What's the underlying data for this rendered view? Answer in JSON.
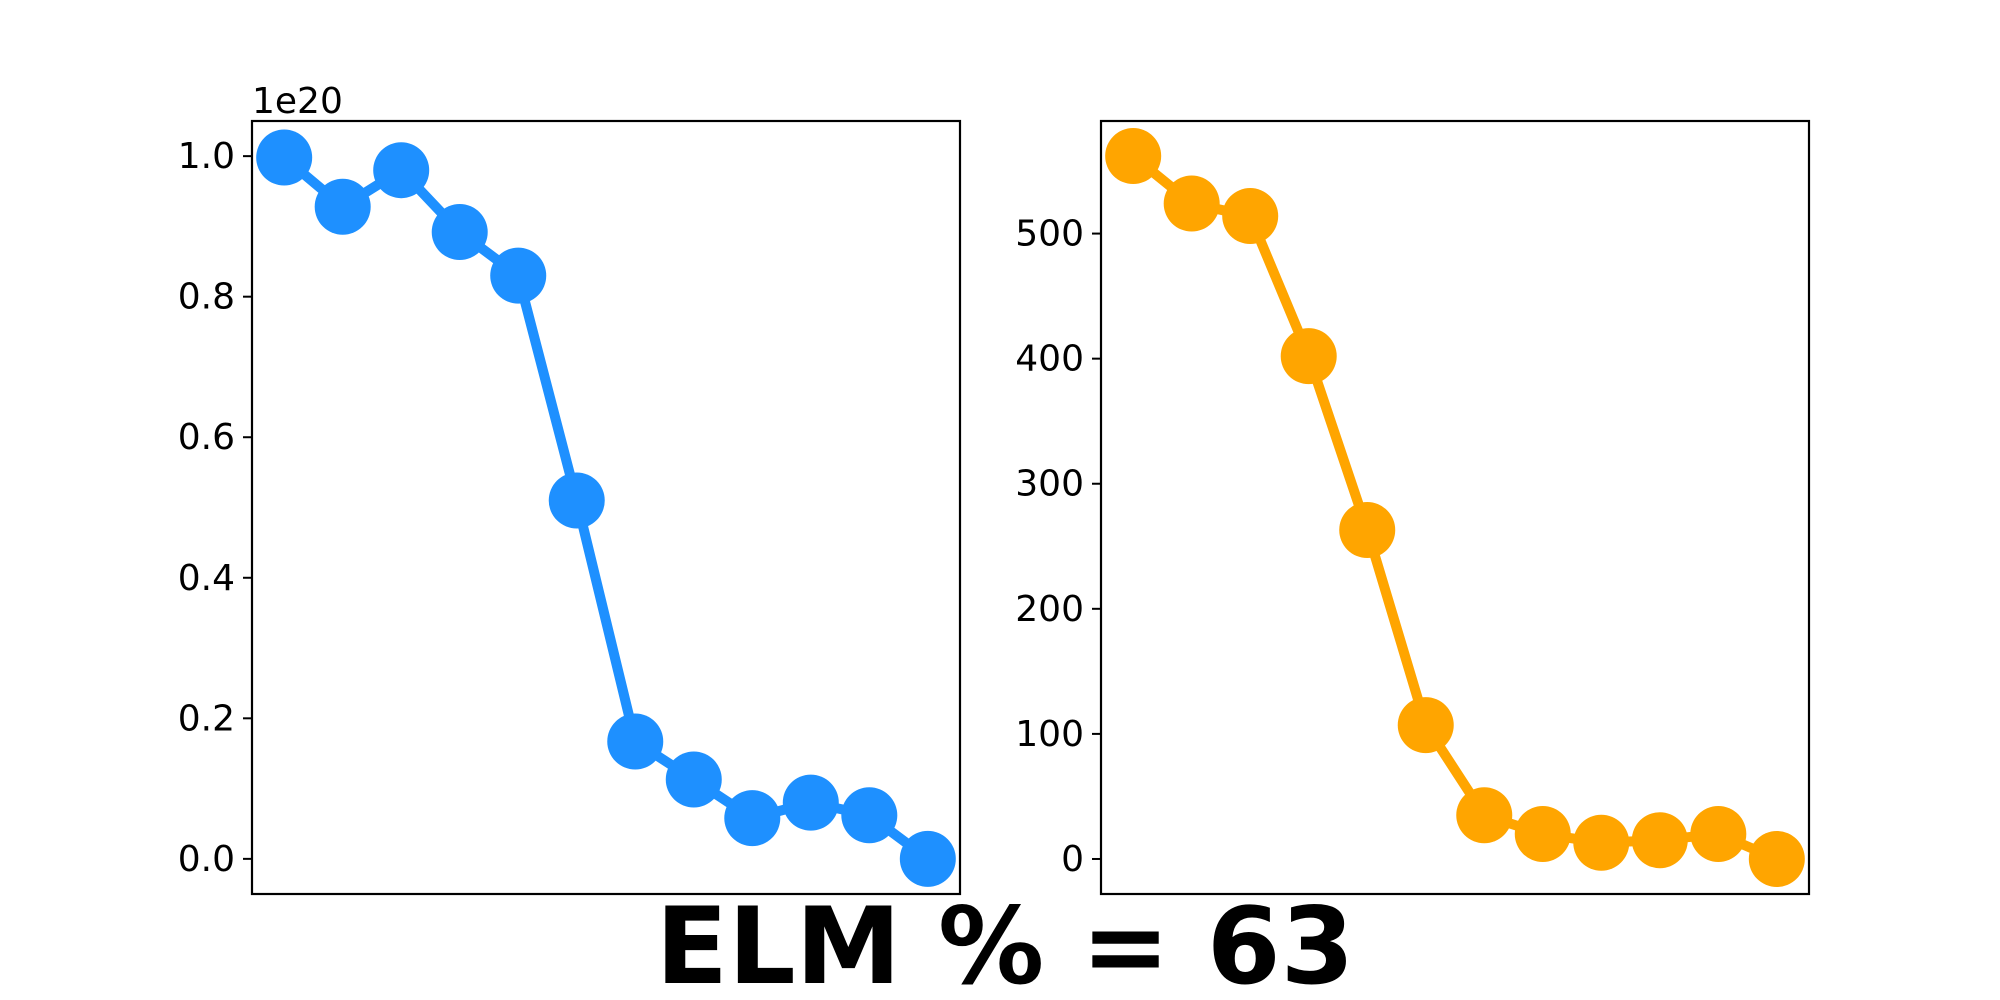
{
  "footer": {
    "title": "ELM % = 63"
  },
  "chart_data": [
    {
      "type": "line",
      "color": "#1e90ff",
      "x": [
        0,
        1,
        2,
        3,
        4,
        5,
        6,
        7,
        8,
        9,
        10,
        11
      ],
      "values": [
        9.98e+19,
        9.28e+19,
        9.8e+19,
        8.92e+19,
        8.3e+19,
        5.1e+19,
        1.67e+19,
        1.13e+19,
        5.8e+18,
        8e+18,
        6.2e+18,
        0.0
      ],
      "ylim": [
        -5e+18,
        1.05e+20
      ],
      "xlim": [
        -0.55,
        11.55
      ],
      "y_ticks": [
        0.0,
        2e+19,
        4e+19,
        6e+19,
        8e+19,
        1e+20
      ],
      "y_tick_labels": [
        "0.0",
        "0.2",
        "0.4",
        "0.6",
        "0.8",
        "1.0"
      ],
      "y_offset_label": "1e20",
      "grid": false,
      "x_ticks_visible": false
    },
    {
      "type": "line",
      "color": "#ffa500",
      "x": [
        0,
        1,
        2,
        3,
        4,
        5,
        6,
        7,
        8,
        9,
        10,
        11
      ],
      "values": [
        562,
        524,
        514,
        402,
        263,
        107,
        35,
        20,
        13,
        15,
        20,
        0
      ],
      "ylim": [
        -28,
        590
      ],
      "xlim": [
        -0.55,
        11.55
      ],
      "y_ticks": [
        0,
        100,
        200,
        300,
        400,
        500
      ],
      "y_tick_labels": [
        "0",
        "100",
        "200",
        "300",
        "400",
        "500"
      ],
      "grid": false,
      "x_ticks_visible": false
    }
  ]
}
